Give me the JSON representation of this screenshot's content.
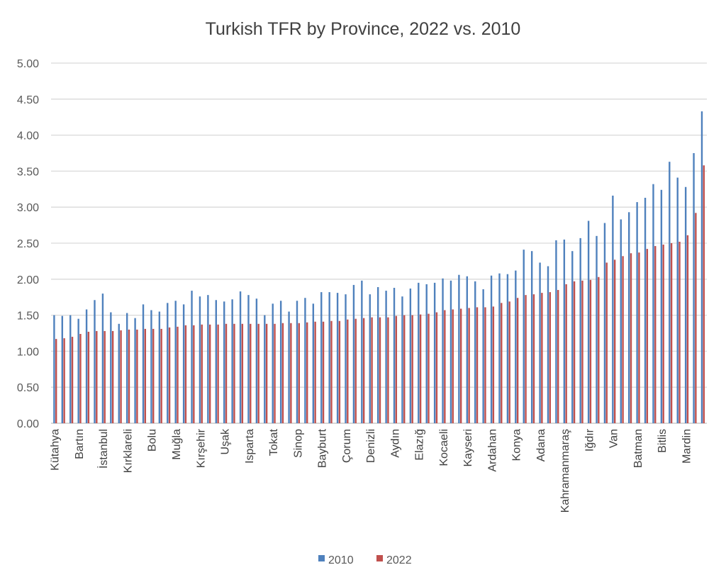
{
  "chart_data": {
    "type": "bar",
    "title": "Turkish TFR by Province, 2022 vs. 2010",
    "xlabel": "",
    "ylabel": "",
    "ylim": [
      0,
      5
    ],
    "yticks": [
      "0.00",
      "0.50",
      "1.00",
      "1.50",
      "2.00",
      "2.50",
      "3.00",
      "3.50",
      "4.00",
      "4.50",
      "5.00"
    ],
    "grid": true,
    "legend_position": "bottom",
    "categories": [
      "Kütahya",
      "",
      "",
      "Bartın",
      "",
      "",
      "İstanbul",
      "",
      "",
      "Kırklareli",
      "",
      "",
      "Bolu",
      "",
      "",
      "Muğla",
      "",
      "",
      "Kırşehir",
      "",
      "",
      "Uşak",
      "",
      "",
      "Isparta",
      "",
      "",
      "Tokat",
      "",
      "",
      "Sinop",
      "",
      "",
      "Bayburt",
      "",
      "",
      "Çorum",
      "",
      "",
      "Denizli",
      "",
      "",
      "Aydın",
      "",
      "",
      "Elazığ",
      "",
      "",
      "Kocaeli",
      "",
      "",
      "Kayseri",
      "",
      "",
      "Ardahan",
      "",
      "",
      "Konya",
      "",
      "",
      "Adana",
      "",
      "",
      "Kahramanmaraş",
      "",
      "",
      "Iğdır",
      "",
      "",
      "Van",
      "",
      "",
      "Batman",
      "",
      "",
      "Bitlis",
      "",
      "",
      "Mardin",
      "",
      ""
    ],
    "series": [
      {
        "name": "2010",
        "color": "#4f81bd",
        "values": [
          1.5,
          1.49,
          1.5,
          1.45,
          1.58,
          1.71,
          1.8,
          1.54,
          1.38,
          1.53,
          1.46,
          1.65,
          1.57,
          1.55,
          1.67,
          1.7,
          1.65,
          1.84,
          1.76,
          1.78,
          1.71,
          1.69,
          1.72,
          1.83,
          1.78,
          1.73,
          1.5,
          1.66,
          1.7,
          1.55,
          1.7,
          1.74,
          1.66,
          1.82,
          1.82,
          1.81,
          1.79,
          1.92,
          1.98,
          1.79,
          1.89,
          1.84,
          1.88,
          1.76,
          1.87,
          1.95,
          1.93,
          1.95,
          2.01,
          1.98,
          2.06,
          2.04,
          1.97,
          1.86,
          2.05,
          2.08,
          2.07,
          2.12,
          2.41,
          2.39,
          2.23,
          2.18,
          2.54,
          2.55,
          2.39,
          2.57,
          2.81,
          2.6,
          2.78,
          3.16,
          2.83,
          2.93,
          3.07,
          3.13,
          3.32,
          3.24,
          3.63,
          3.41,
          3.28,
          3.75,
          4.33
        ]
      },
      {
        "name": "2022",
        "color": "#c0504d",
        "values": [
          1.17,
          1.18,
          1.2,
          1.24,
          1.27,
          1.28,
          1.28,
          1.28,
          1.29,
          1.3,
          1.3,
          1.31,
          1.31,
          1.31,
          1.33,
          1.34,
          1.36,
          1.36,
          1.37,
          1.37,
          1.37,
          1.38,
          1.38,
          1.38,
          1.38,
          1.38,
          1.38,
          1.38,
          1.39,
          1.39,
          1.39,
          1.4,
          1.41,
          1.41,
          1.42,
          1.42,
          1.44,
          1.45,
          1.46,
          1.47,
          1.47,
          1.47,
          1.49,
          1.5,
          1.5,
          1.51,
          1.52,
          1.54,
          1.57,
          1.58,
          1.59,
          1.6,
          1.61,
          1.61,
          1.62,
          1.67,
          1.69,
          1.74,
          1.78,
          1.79,
          1.81,
          1.82,
          1.85,
          1.93,
          1.97,
          1.98,
          1.99,
          2.03,
          2.23,
          2.27,
          2.32,
          2.36,
          2.37,
          2.42,
          2.46,
          2.48,
          2.5,
          2.52,
          2.61,
          2.92,
          3.58
        ]
      }
    ]
  }
}
